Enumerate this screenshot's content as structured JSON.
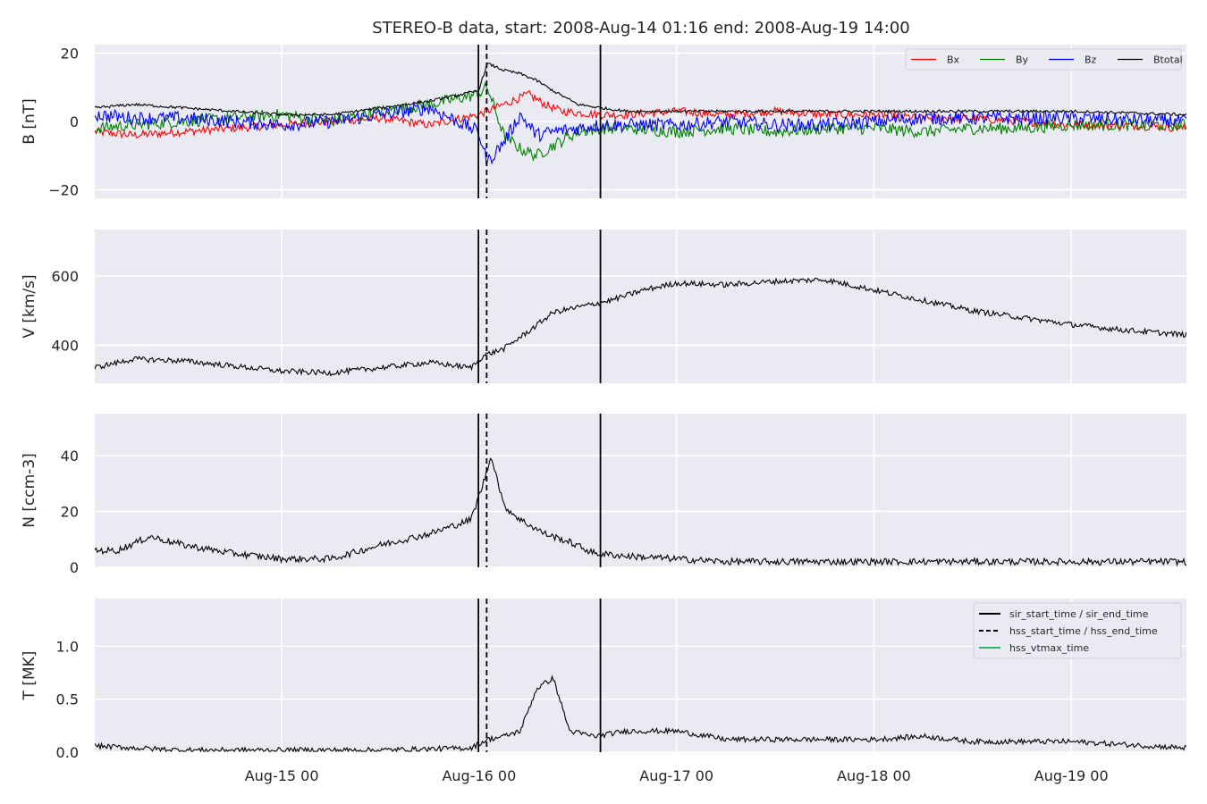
{
  "chart_data": {
    "type": "line",
    "title": "STEREO-B data, start: 2008-Aug-14 01:16  end: 2008-Aug-19 14:00",
    "x_range": [
      "2008-08-14 01:16",
      "2008-08-19 14:00"
    ],
    "x_tick_labels": [
      "Aug-15 00",
      "Aug-16 00",
      "Aug-17 00",
      "Aug-18 00",
      "Aug-19 00"
    ],
    "x_ticks": [
      "2008-08-15 00:00",
      "2008-08-16 00:00",
      "2008-08-17 00:00",
      "2008-08-18 00:00",
      "2008-08-19 00:00"
    ],
    "grid": true,
    "event_lines": [
      {
        "label": "sir_start_time / sir_end_time",
        "style": "solid",
        "color": "#000000",
        "times": [
          "2008-08-15 23:55",
          "2008-08-16 14:45"
        ]
      },
      {
        "label": "hss_start_time / hss_end_time",
        "style": "dashed",
        "color": "#000000",
        "times": [
          "2008-08-16 00:55"
        ]
      },
      {
        "label": "hss_vtmax_time",
        "style": "solid",
        "color": "#2ab56b",
        "times": []
      }
    ],
    "panels": [
      {
        "ylabel": "B [nT]",
        "ylim": [
          -22.5,
          22.5
        ],
        "yticks": [
          -20,
          0,
          20
        ],
        "ytick_labels": [
          "−20",
          "0",
          "20"
        ],
        "legend_placement": "top-right",
        "series": [
          {
            "name": "Bx",
            "color": "#ff0000",
            "x": [
              "2008-08-14 01:16",
              "2008-08-14 06:00",
              "2008-08-14 12:00",
              "2008-08-14 18:00",
              "2008-08-15 00:00",
              "2008-08-15 06:00",
              "2008-08-15 12:00",
              "2008-08-15 18:00",
              "2008-08-15 23:55",
              "2008-08-16 02:00",
              "2008-08-16 04:00",
              "2008-08-16 06:00",
              "2008-08-16 08:00",
              "2008-08-16 10:00",
              "2008-08-16 14:45",
              "2008-08-16 18:00",
              "2008-08-17 00:00",
              "2008-08-17 06:00",
              "2008-08-17 12:00",
              "2008-08-17 18:00",
              "2008-08-18 00:00",
              "2008-08-18 06:00",
              "2008-08-18 12:00",
              "2008-08-18 18:00",
              "2008-08-19 00:00",
              "2008-08-19 06:00",
              "2008-08-19 14:00"
            ],
            "y": [
              -3,
              -4,
              -3,
              -2,
              -1,
              0,
              1,
              -1,
              2,
              4,
              6,
              8,
              5,
              3,
              2,
              2,
              3,
              2,
              3,
              2,
              2,
              1,
              1,
              0,
              -1,
              -1,
              -2
            ],
            "noise": 1.2
          },
          {
            "name": "By",
            "color": "#008000",
            "x": [
              "2008-08-14 01:16",
              "2008-08-14 06:00",
              "2008-08-14 12:00",
              "2008-08-14 18:00",
              "2008-08-15 00:00",
              "2008-08-15 06:00",
              "2008-08-15 12:00",
              "2008-08-15 18:00",
              "2008-08-15 23:55",
              "2008-08-16 01:00",
              "2008-08-16 03:00",
              "2008-08-16 05:00",
              "2008-08-16 07:00",
              "2008-08-16 09:00",
              "2008-08-16 12:00",
              "2008-08-16 14:45",
              "2008-08-16 18:00",
              "2008-08-17 00:00",
              "2008-08-17 06:00",
              "2008-08-17 12:00",
              "2008-08-17 18:00",
              "2008-08-18 00:00",
              "2008-08-18 06:00",
              "2008-08-18 12:00",
              "2008-08-18 18:00",
              "2008-08-19 00:00",
              "2008-08-19 14:00"
            ],
            "y": [
              -2,
              -1,
              0,
              1,
              2,
              0,
              3,
              5,
              8,
              10,
              -4,
              -8,
              -10,
              -7,
              -3,
              -2,
              -2,
              -3,
              -2,
              -3,
              -2,
              -2,
              -3,
              -2,
              -2,
              -1,
              -1
            ],
            "noise": 1.8
          },
          {
            "name": "Bz",
            "color": "#0000ff",
            "x": [
              "2008-08-14 01:16",
              "2008-08-14 06:00",
              "2008-08-14 12:00",
              "2008-08-14 18:00",
              "2008-08-15 00:00",
              "2008-08-15 06:00",
              "2008-08-15 12:00",
              "2008-08-15 18:00",
              "2008-08-15 23:55",
              "2008-08-16 01:00",
              "2008-08-16 03:00",
              "2008-08-16 05:00",
              "2008-08-16 07:00",
              "2008-08-16 09:00",
              "2008-08-16 12:00",
              "2008-08-16 14:45",
              "2008-08-16 18:00",
              "2008-08-17 00:00",
              "2008-08-17 06:00",
              "2008-08-17 12:00",
              "2008-08-17 18:00",
              "2008-08-18 00:00",
              "2008-08-18 06:00",
              "2008-08-18 12:00",
              "2008-08-18 18:00",
              "2008-08-19 00:00",
              "2008-08-19 14:00"
            ],
            "y": [
              2,
              1,
              1,
              0,
              -1,
              0,
              2,
              4,
              -3,
              -12,
              -6,
              2,
              -4,
              -3,
              -2,
              -1,
              -1,
              -1,
              0,
              -1,
              -1,
              0,
              1,
              1,
              1,
              1,
              0
            ],
            "noise": 2.0
          },
          {
            "name": "Btotal",
            "color": "#000000",
            "x": [
              "2008-08-14 01:16",
              "2008-08-14 06:00",
              "2008-08-14 12:00",
              "2008-08-14 18:00",
              "2008-08-15 00:00",
              "2008-08-15 06:00",
              "2008-08-15 12:00",
              "2008-08-15 18:00",
              "2008-08-15 22:00",
              "2008-08-15 23:55",
              "2008-08-16 01:00",
              "2008-08-16 03:00",
              "2008-08-16 05:00",
              "2008-08-16 07:00",
              "2008-08-16 09:00",
              "2008-08-16 12:00",
              "2008-08-16 14:45",
              "2008-08-16 18:00",
              "2008-08-17 00:00",
              "2008-08-17 06:00",
              "2008-08-17 12:00",
              "2008-08-17 18:00",
              "2008-08-18 00:00",
              "2008-08-18 06:00",
              "2008-08-18 12:00",
              "2008-08-18 18:00",
              "2008-08-19 00:00",
              "2008-08-19 14:00"
            ],
            "y": [
              4,
              5,
              4,
              3,
              2,
              2,
              4,
              6,
              8,
              9,
              17,
              15,
              14,
              12,
              9,
              5,
              4,
              3,
              3,
              3,
              3,
              3,
              3,
              3,
              3,
              3,
              3,
              2
            ],
            "noise": 0.4
          }
        ]
      },
      {
        "ylabel": "V [km/s]",
        "ylim": [
          290,
          735
        ],
        "yticks": [
          400,
          600
        ],
        "ytick_labels": [
          "400",
          "600"
        ],
        "series": [
          {
            "name": "",
            "color": "#000000",
            "x": [
              "2008-08-14 01:16",
              "2008-08-14 06:00",
              "2008-08-14 12:00",
              "2008-08-14 18:00",
              "2008-08-15 00:00",
              "2008-08-15 06:00",
              "2008-08-15 12:00",
              "2008-08-15 18:00",
              "2008-08-15 23:00",
              "2008-08-16 00:30",
              "2008-08-16 03:00",
              "2008-08-16 06:00",
              "2008-08-16 09:00",
              "2008-08-16 12:00",
              "2008-08-16 16:00",
              "2008-08-16 20:00",
              "2008-08-17 00:00",
              "2008-08-17 06:00",
              "2008-08-17 12:00",
              "2008-08-17 18:00",
              "2008-08-18 00:00",
              "2008-08-18 06:00",
              "2008-08-18 12:00",
              "2008-08-18 18:00",
              "2008-08-19 00:00",
              "2008-08-19 06:00",
              "2008-08-19 14:00"
            ],
            "y": [
              335,
              360,
              355,
              340,
              325,
              320,
              335,
              350,
              335,
              370,
              390,
              440,
              495,
              510,
              530,
              560,
              580,
              575,
              585,
              590,
              560,
              530,
              500,
              480,
              460,
              445,
              430
            ],
            "noise": 8
          }
        ]
      },
      {
        "ylabel": "N [ccm-3]",
        "ylim": [
          0,
          55
        ],
        "yticks": [
          0,
          20,
          40
        ],
        "ytick_labels": [
          "0",
          "20",
          "40"
        ],
        "series": [
          {
            "name": "",
            "color": "#000000",
            "x": [
              "2008-08-14 01:16",
              "2008-08-14 04:00",
              "2008-08-14 08:00",
              "2008-08-14 12:00",
              "2008-08-14 18:00",
              "2008-08-15 00:00",
              "2008-08-15 06:00",
              "2008-08-15 12:00",
              "2008-08-15 18:00",
              "2008-08-15 23:00",
              "2008-08-16 00:30",
              "2008-08-16 01:30",
              "2008-08-16 03:00",
              "2008-08-16 05:00",
              "2008-08-16 08:00",
              "2008-08-16 11:00",
              "2008-08-16 14:00",
              "2008-08-16 18:00",
              "2008-08-17 00:00",
              "2008-08-17 06:00",
              "2008-08-17 12:00",
              "2008-08-17 18:00",
              "2008-08-18 00:00",
              "2008-08-18 12:00",
              "2008-08-19 00:00",
              "2008-08-19 14:00"
            ],
            "y": [
              6,
              6,
              11,
              8,
              5,
              3,
              3,
              8,
              12,
              17,
              30,
              40,
              22,
              17,
              12,
              9,
              5,
              4,
              3,
              2,
              2,
              2,
              2,
              2,
              2,
              2
            ],
            "noise": 1.2
          }
        ]
      },
      {
        "ylabel": "T [MK]",
        "ylim": [
          0,
          1.45
        ],
        "yticks": [
          0.0,
          0.5,
          1.0
        ],
        "ytick_labels": [
          "0.0",
          "0.5",
          "1.0"
        ],
        "legend_placement": "top-right",
        "series": [
          {
            "name": "",
            "color": "#000000",
            "x": [
              "2008-08-14 01:16",
              "2008-08-14 06:00",
              "2008-08-14 12:00",
              "2008-08-15 00:00",
              "2008-08-15 12:00",
              "2008-08-15 23:00",
              "2008-08-16 01:00",
              "2008-08-16 03:00",
              "2008-08-16 05:00",
              "2008-08-16 07:00",
              "2008-08-16 09:00",
              "2008-08-16 11:00",
              "2008-08-16 14:00",
              "2008-08-16 18:00",
              "2008-08-17 00:00",
              "2008-08-17 06:00",
              "2008-08-17 12:00",
              "2008-08-18 00:00",
              "2008-08-18 06:00",
              "2008-08-18 12:00",
              "2008-08-19 00:00",
              "2008-08-19 14:00"
            ],
            "y": [
              0.06,
              0.04,
              0.02,
              0.02,
              0.02,
              0.04,
              0.12,
              0.15,
              0.2,
              0.6,
              0.7,
              0.2,
              0.15,
              0.2,
              0.2,
              0.12,
              0.12,
              0.12,
              0.15,
              0.1,
              0.1,
              0.04
            ],
            "noise": 0.025
          }
        ]
      }
    ]
  }
}
